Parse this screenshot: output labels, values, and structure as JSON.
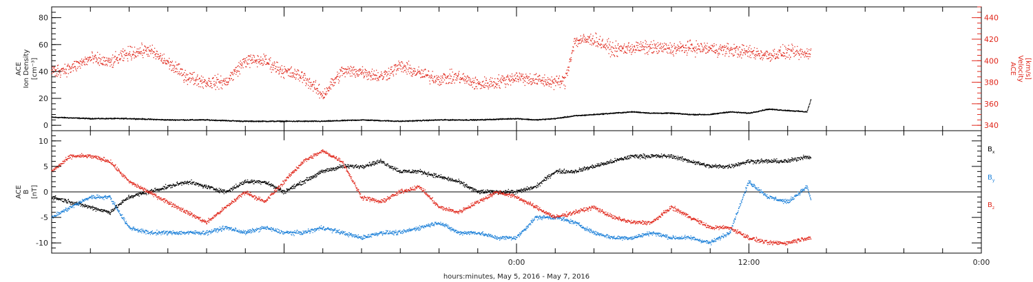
{
  "chart_data": [
    {
      "type": "scatter",
      "panel": "top",
      "left_axis": {
        "label_lines": [
          "ACE",
          "Ion Density",
          "[cm⁻³]"
        ],
        "ylim": [
          -4,
          88
        ],
        "ticks": [
          0,
          20,
          40,
          60,
          80
        ],
        "tick_labels": [
          "0",
          "20",
          "40",
          "60",
          "80"
        ]
      },
      "right_axis": {
        "label_lines": [
          "ACE",
          "Velocity",
          "[km/s]"
        ],
        "ylim": [
          335,
          450
        ],
        "ticks": [
          340,
          360,
          380,
          400,
          420,
          440
        ],
        "tick_labels": [
          "340",
          "360",
          "380",
          "400",
          "420",
          "440"
        ],
        "color": "#e0261a"
      },
      "xlim": [
        -24,
        24
      ],
      "series": [
        {
          "axis": "left",
          "color": "#000000",
          "x": [
            -24,
            -22,
            -20,
            -18,
            -16,
            -14,
            -12,
            -10,
            -8,
            -6,
            -4,
            -2,
            0,
            1,
            2,
            3,
            4,
            5,
            6,
            7,
            8,
            9,
            10,
            11,
            12,
            13,
            14,
            15,
            15.2
          ],
          "y": [
            6,
            5,
            5,
            4,
            4,
            3,
            3,
            3,
            4,
            3,
            4,
            4,
            5,
            4,
            5,
            7,
            8,
            9,
            10,
            9,
            9,
            8,
            8,
            10,
            9,
            12,
            11,
            10,
            19
          ]
        },
        {
          "axis": "right",
          "color": "#e0261a",
          "x": [
            -24,
            -23,
            -22,
            -21,
            -20,
            -19,
            -18,
            -17,
            -16,
            -15,
            -14,
            -13,
            -12,
            -11,
            -10,
            -9,
            -8,
            -7,
            -6,
            -5,
            -4,
            -3,
            -2,
            -1,
            0,
            1,
            2,
            2.5,
            3,
            4,
            5,
            6,
            7,
            8,
            9,
            10,
            11,
            12,
            13,
            14,
            15,
            15.2
          ],
          "y": [
            390,
            393,
            402,
            398,
            407,
            410,
            398,
            385,
            380,
            380,
            400,
            400,
            390,
            385,
            368,
            390,
            390,
            385,
            395,
            388,
            383,
            385,
            378,
            380,
            385,
            382,
            380,
            381,
            418,
            420,
            410,
            412,
            412,
            411,
            412,
            411,
            410,
            408,
            405,
            408,
            406,
            408
          ]
        }
      ],
      "jitter": [
        0.8,
        9
      ]
    },
    {
      "type": "scatter",
      "panel": "bottom",
      "left_axis": {
        "label_lines": [
          "ACE",
          "B",
          "[nT]"
        ],
        "ylim": [
          -12,
          12
        ],
        "ticks": [
          -10,
          -5,
          0,
          5,
          10
        ],
        "tick_labels": [
          "-10",
          "-5",
          "0",
          "5",
          "10"
        ]
      },
      "xlim": [
        -24,
        24
      ],
      "zero_line": true,
      "series": [
        {
          "name": "Bx",
          "color": "#000000",
          "x": [
            -24,
            -23,
            -22,
            -21,
            -20,
            -19,
            -18,
            -17,
            -16,
            -15,
            -14,
            -13,
            -12,
            -11,
            -10,
            -9,
            -8,
            -7,
            -6,
            -5,
            -4,
            -3,
            -2,
            -1,
            0,
            1,
            2,
            3,
            4,
            5,
            6,
            7,
            8,
            9,
            10,
            11,
            12,
            13,
            14,
            15,
            15.2
          ],
          "y": [
            -1,
            -2,
            -3,
            -4,
            -1,
            0,
            1,
            2,
            1,
            0,
            2,
            2,
            0,
            2,
            4,
            5,
            5,
            6,
            4,
            4,
            3,
            2,
            0,
            0,
            0,
            1,
            4,
            4,
            5,
            6,
            7,
            7,
            7,
            6,
            5,
            5,
            6,
            6,
            6,
            7,
            6.5
          ]
        },
        {
          "name": "By",
          "color": "#1a7fd8",
          "x": [
            -24,
            -23,
            -22,
            -21,
            -20,
            -19,
            -18,
            -17,
            -16,
            -15,
            -14,
            -13,
            -12,
            -11,
            -10,
            -9,
            -8,
            -7,
            -6,
            -5,
            -4,
            -3,
            -2,
            -1,
            0,
            1,
            2,
            3,
            4,
            5,
            6,
            7,
            8,
            9,
            10,
            11,
            12,
            13,
            14,
            15,
            15.2
          ],
          "y": [
            -5,
            -3,
            -1,
            -1,
            -7,
            -8,
            -8,
            -8,
            -8,
            -7,
            -8,
            -7,
            -8,
            -8,
            -7,
            -8,
            -9,
            -8,
            -8,
            -7,
            -6,
            -8,
            -8,
            -9,
            -9,
            -5,
            -5,
            -6,
            -8,
            -9,
            -9,
            -8,
            -9,
            -9,
            -10,
            -8,
            2,
            -1,
            -2,
            1,
            -1.5
          ]
        },
        {
          "name": "Bz",
          "color": "#e0261a",
          "x": [
            -24,
            -23,
            -22,
            -21,
            -20,
            -19,
            -18,
            -17,
            -16,
            -15,
            -14,
            -13,
            -12,
            -11,
            -10,
            -9,
            -8,
            -7,
            -6,
            -5,
            -4,
            -3,
            -2,
            -1,
            0,
            1,
            2,
            3,
            4,
            5,
            6,
            7,
            8,
            9,
            10,
            11,
            12,
            13,
            14,
            15,
            15.2
          ],
          "y": [
            4,
            7,
            7,
            6,
            2,
            0,
            -2,
            -4,
            -6,
            -3,
            0,
            -2,
            2,
            6,
            8,
            6,
            -1,
            -2,
            0,
            1,
            -3,
            -4,
            -2,
            0,
            -1,
            -3,
            -5,
            -4,
            -3,
            -5,
            -6,
            -6,
            -3,
            -5,
            -7,
            -7,
            -9,
            -10,
            -10,
            -9,
            -9
          ]
        }
      ],
      "legend": [
        {
          "label": "B",
          "sub": "x",
          "color": "#000000"
        },
        {
          "label": "B",
          "sub": "y",
          "color": "#1a7fd8"
        },
        {
          "label": "B",
          "sub": "z",
          "color": "#e0261a"
        }
      ],
      "legend_placement": "right",
      "jitter": [
        0.6,
        0.7
      ]
    }
  ],
  "x_axis": {
    "ticks": [
      0,
      12,
      24
    ],
    "tick_labels": [
      "0:00",
      "12:00",
      "0:00"
    ],
    "title": "hours:minutes, May  5, 2016 - May  7, 2016"
  }
}
